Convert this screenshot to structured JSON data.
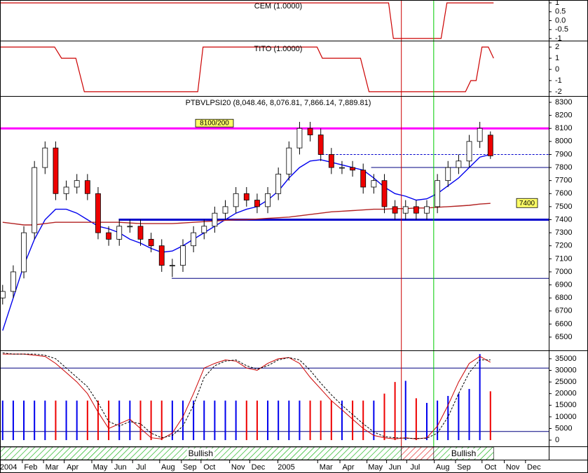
{
  "chart_data": [
    {
      "type": "step-line",
      "title": "CEM (1.0000)",
      "color": "#cc0000",
      "x": [
        -0.5,
        72.8,
        73.7,
        82.7,
        83.8,
        92.6
      ],
      "values": [
        1,
        1,
        -1,
        -1,
        1,
        1
      ],
      "ylim": [
        -1.12,
        1.16
      ],
      "yticks": [
        1,
        0.5,
        {
          "value": 0,
          "label": "0.0"
        },
        -0.5,
        -1
      ]
    },
    {
      "type": "step-line",
      "title": "TITO (1.0000)",
      "color": "#cc0000",
      "x": [
        -0.5,
        9.8,
        11.1,
        13.8,
        15.4,
        36.8,
        37.8,
        59.3,
        60.3,
        67.5,
        69.1,
        87.3,
        88.3,
        89.3,
        90.4,
        91.6,
        92.6
      ],
      "values": [
        2,
        2,
        1,
        1,
        -2,
        -2,
        2,
        2,
        1,
        1,
        -2,
        -2,
        -1,
        -1,
        2,
        2,
        1
      ],
      "ylim": [
        -2.38,
        2.51
      ],
      "yticks": [
        2,
        1,
        0,
        -1,
        -2
      ]
    },
    {
      "type": "candlestick",
      "title": "PTBVLPSI20 (8,048.46, 8,076.81, 7,866.14, 7,889.81)",
      "up_color": "#ffffff",
      "down_color": "#ee0000",
      "x": [
        0,
        2,
        4,
        6,
        8,
        10,
        12,
        14,
        16,
        18,
        20,
        22,
        24,
        26,
        28,
        30,
        32,
        34,
        36,
        38,
        40,
        42,
        44,
        46,
        48,
        50,
        52,
        54,
        56,
        58,
        60,
        62,
        64,
        66,
        68,
        70,
        72,
        74,
        76,
        78,
        80,
        82,
        84,
        86,
        88,
        90,
        92
      ],
      "open": [
        6800,
        6850,
        7000,
        7300,
        7800,
        7950,
        7600,
        7650,
        7700,
        7600,
        7300,
        7250,
        7350,
        7350,
        7250,
        7200,
        7050,
        7050,
        7200,
        7300,
        7350,
        7450,
        7500,
        7600,
        7550,
        7500,
        7600,
        7750,
        7950,
        8100,
        8050,
        7900,
        7800,
        7800,
        7780,
        7650,
        7700,
        7500,
        7450,
        7500,
        7450,
        7500,
        7700,
        7800,
        7850,
        8000,
        8048.46
      ],
      "high": [
        6900,
        7050,
        7350,
        7850,
        8000,
        8000,
        7700,
        7750,
        7750,
        7650,
        7350,
        7400,
        7400,
        7400,
        7300,
        7250,
        7100,
        7250,
        7350,
        7400,
        7500,
        7550,
        7650,
        7650,
        7600,
        7650,
        7800,
        8000,
        8150,
        8150,
        8100,
        7950,
        7850,
        7850,
        7830,
        7750,
        7750,
        7550,
        7550,
        7550,
        7550,
        7750,
        7850,
        7900,
        8050,
        8150,
        8076.81
      ],
      "low": [
        6750,
        6800,
        6950,
        7250,
        7750,
        7550,
        7550,
        7600,
        7550,
        7250,
        7200,
        7200,
        7300,
        7200,
        7150,
        7000,
        6960,
        7000,
        7150,
        7250,
        7300,
        7400,
        7450,
        7500,
        7450,
        7450,
        7550,
        7700,
        7900,
        8000,
        7850,
        7750,
        7750,
        7730,
        7600,
        7600,
        7450,
        7400,
        7400,
        7400,
        7400,
        7450,
        7650,
        7750,
        7800,
        7950,
        7866.14
      ],
      "close": [
        6850,
        7000,
        7300,
        7800,
        7950,
        7600,
        7650,
        7700,
        7600,
        7300,
        7250,
        7350,
        7350,
        7250,
        7200,
        7050,
        7050,
        7200,
        7300,
        7350,
        7450,
        7500,
        7600,
        7550,
        7500,
        7600,
        7750,
        7950,
        8100,
        8050,
        7900,
        7800,
        7800,
        7780,
        7650,
        7700,
        7500,
        7450,
        7500,
        7450,
        7500,
        7700,
        7800,
        7850,
        8000,
        8100,
        7889.81
      ],
      "moving_averages": [
        {
          "color": "#0000ee",
          "values": [
            6550,
            6800,
            7050,
            7250,
            7400,
            7480,
            7480,
            7450,
            7400,
            7350,
            7330,
            7300,
            7250,
            7220,
            7180,
            7150,
            7160,
            7200,
            7250,
            7300,
            7350,
            7400,
            7450,
            7480,
            7500,
            7550,
            7620,
            7720,
            7800,
            7850,
            7860,
            7840,
            7820,
            7800,
            7780,
            7720,
            7650,
            7600,
            7580,
            7550,
            7560,
            7600,
            7660,
            7720,
            7800,
            7880,
            7900
          ]
        },
        {
          "color": "#b22222",
          "values": [
            7380,
            7370,
            7360,
            7360,
            7370,
            7380,
            7380,
            7380,
            7380,
            7380,
            7380,
            7380,
            7375,
            7370,
            7370,
            7370,
            7370,
            7375,
            7380,
            7385,
            7390,
            7395,
            7400,
            7400,
            7405,
            7410,
            7415,
            7420,
            7430,
            7440,
            7450,
            7460,
            7465,
            7470,
            7475,
            7480,
            7480,
            7485,
            7485,
            7490,
            7490,
            7495,
            7500,
            7505,
            7510,
            7520,
            7525
          ]
        }
      ],
      "levels": [
        {
          "value": 8100,
          "from": -0.5,
          "color": "#ff00ff",
          "width": 3,
          "label": "8100/200"
        },
        {
          "value": 7400,
          "from": 21.9,
          "color": "#0000cc",
          "width": 3
        },
        {
          "value": 7900,
          "from": 59.6,
          "color": "#0000cc",
          "width": 1,
          "dashed": true
        },
        {
          "value": 7800,
          "from": 69.5,
          "color": "#000080",
          "width": 1
        },
        {
          "value": 6950,
          "from": 31.9,
          "color": "#000080",
          "width": 1
        }
      ],
      "ma_label": "7400",
      "ylim": [
        6398,
        8343
      ],
      "yticks": [
        8300,
        8200,
        8100,
        8000,
        7900,
        7800,
        7700,
        7600,
        7500,
        7400,
        7300,
        7200,
        7100,
        7000,
        6900,
        6800,
        6700,
        6600,
        6500
      ]
    },
    {
      "type": "bar",
      "color_up": "#0000ee",
      "color_down": "#ee0000",
      "values": [
        17000,
        17000,
        17000,
        17000,
        17000,
        17000,
        17000,
        17000,
        17000,
        17000,
        17000,
        17000,
        17000,
        17000,
        17000,
        17000,
        17000,
        17000,
        17000,
        17000,
        17000,
        17000,
        17000,
        17000,
        17000,
        17000,
        17000,
        17000,
        17000,
        17000,
        17000,
        17000,
        17000,
        17000,
        17000,
        17000,
        20000,
        25000,
        25500,
        18000,
        16000,
        17000,
        19000,
        20000,
        22000,
        37000,
        21000
      ],
      "oscillator": [
        {
          "color": "#cc0000",
          "dashed": false,
          "values": [
            37000,
            37000,
            37000,
            36500,
            36000,
            33000,
            29000,
            25000,
            20000,
            12000,
            5000,
            7000,
            9000,
            5000,
            1000,
            500,
            3000,
            10000,
            20000,
            31000,
            33000,
            34500,
            34000,
            31000,
            30000,
            33000,
            35000,
            35500,
            33000,
            27000,
            22000,
            17000,
            13000,
            9000,
            5000,
            2000,
            1000,
            500,
            1000,
            500,
            1000,
            6000,
            15000,
            25000,
            33000,
            36000,
            33500
          ]
        },
        {
          "color": "#000000",
          "dashed": true,
          "values": [
            37500,
            37000,
            37000,
            37000,
            36500,
            35000,
            31000,
            27000,
            23000,
            16000,
            8000,
            6000,
            8000,
            7000,
            3000,
            1000,
            2000,
            6000,
            15000,
            27000,
            32000,
            34000,
            34500,
            32000,
            30500,
            32000,
            34500,
            35500,
            34500,
            30000,
            24500,
            19500,
            15000,
            11000,
            7000,
            3500,
            1500,
            1000,
            800,
            700,
            800,
            3000,
            10000,
            20000,
            29000,
            34500,
            34500
          ]
        }
      ],
      "levels": [
        31000,
        3700
      ],
      "ylim": [
        -3000,
        38600
      ],
      "yticks": [
        35000,
        30000,
        25000,
        20000,
        15000,
        10000,
        5000,
        0
      ],
      "xlim": [
        -0.5,
        103
      ],
      "xticks": [
        {
          "value": 1.1,
          "label": "2004"
        },
        {
          "value": 5.3,
          "label": "Feb"
        },
        {
          "value": 9.3,
          "label": "Mar"
        },
        {
          "value": 13.2,
          "label": "Apr"
        },
        {
          "value": 18.4,
          "label": "May"
        },
        {
          "value": 22.2,
          "label": "Jun"
        },
        {
          "value": 26.1,
          "label": "Jul"
        },
        {
          "value": 31.2,
          "label": "Aug"
        },
        {
          "value": 35.3,
          "label": "Sep"
        },
        {
          "value": 39,
          "label": "Oct"
        },
        {
          "value": 44.4,
          "label": "Nov"
        },
        {
          "value": 48.2,
          "label": "Dec"
        },
        {
          "value": 53.5,
          "label": "2005"
        },
        {
          "value": 61,
          "label": "Mar"
        },
        {
          "value": 65.2,
          "label": "Apr"
        },
        {
          "value": 70.3,
          "label": "May"
        },
        {
          "value": 74,
          "label": "Jun"
        },
        {
          "value": 77.8,
          "label": "Jul"
        },
        {
          "value": 83,
          "label": "Aug"
        },
        {
          "value": 87,
          "label": "Sep"
        },
        {
          "value": 92,
          "label": "Oct"
        },
        {
          "value": 96.2,
          "label": "Nov"
        },
        {
          "value": 100.2,
          "label": "Dec"
        }
      ],
      "vlines": [
        {
          "value": 75.2,
          "color": "#cc0000"
        },
        {
          "value": 81.3,
          "color": "#00cc00"
        }
      ],
      "bands": [
        {
          "from": -0.5,
          "to": 75.2,
          "color": "#00aa00",
          "label": "Bullish"
        },
        {
          "from": 75.2,
          "to": 81.3,
          "color": "#dd0000"
        },
        {
          "from": 81.3,
          "to": 92.6,
          "color": "#00aa00",
          "label": "Bullish"
        }
      ]
    }
  ]
}
